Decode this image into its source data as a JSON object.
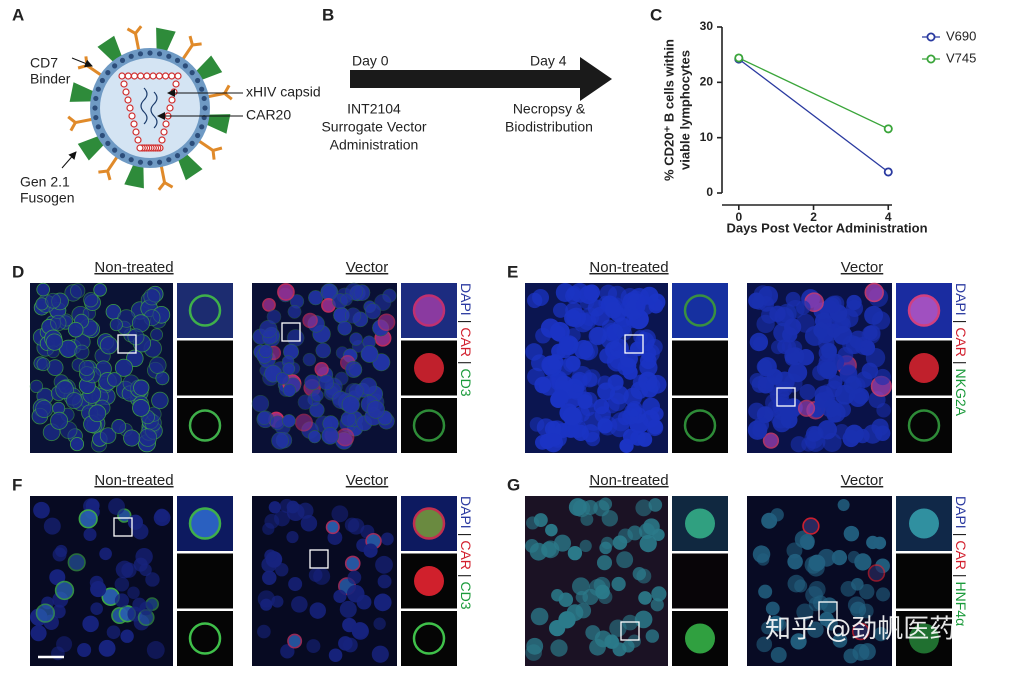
{
  "panel_a": {
    "label": "A",
    "cd7_binder": [
      "CD7",
      "Binder"
    ],
    "capsid": "xHIV capsid",
    "car": "CAR20",
    "fusogen": [
      "Gen 2.1",
      "Fusogen"
    ]
  },
  "panel_b": {
    "label": "B",
    "day0": "Day 0",
    "day4": "Day 4",
    "left_text": [
      "INT2104",
      "Surrogate Vector",
      "Administration"
    ],
    "right_text": [
      "Necropsy &",
      "Biodistribution"
    ]
  },
  "chart_data": {
    "type": "line",
    "label": "C",
    "x": [
      0,
      4
    ],
    "series": [
      {
        "name": "V690",
        "color": "#2a3aa0",
        "values": [
          24.2,
          3.8
        ]
      },
      {
        "name": "V745",
        "color": "#3aa53a",
        "values": [
          24.4,
          11.6
        ]
      }
    ],
    "xlim": [
      -0.45,
      4.1
    ],
    "xticks": [
      0,
      2,
      4
    ],
    "ylim": [
      0,
      30
    ],
    "yticks": [
      0,
      10,
      20,
      30
    ],
    "xlabel": "Days Post Vector Administration",
    "ylabel": [
      "% CD20⁺ B cells within",
      "viable lymphocytes"
    ],
    "legend": "top-right"
  },
  "image_panels": [
    {
      "label": "D",
      "left_title": "Non-treated",
      "right_title": "Vector",
      "stains": [
        "DAPI",
        "CAR",
        "CD3"
      ],
      "separator": "|"
    },
    {
      "label": "E",
      "left_title": "Non-treated",
      "right_title": "Vector",
      "stains": [
        "DAPI",
        "CAR",
        "NKG2A"
      ],
      "separator": "|"
    },
    {
      "label": "F",
      "left_title": "Non-treated",
      "right_title": "Vector",
      "stains": [
        "DAPI",
        "CAR",
        "CD3"
      ],
      "separator": "|"
    },
    {
      "label": "G",
      "left_title": "Non-treated",
      "right_title": "Vector",
      "stains": [
        "DAPI",
        "CAR",
        "HNF4α"
      ],
      "separator": "|"
    }
  ],
  "watermark": "知乎 @劲帆医药"
}
